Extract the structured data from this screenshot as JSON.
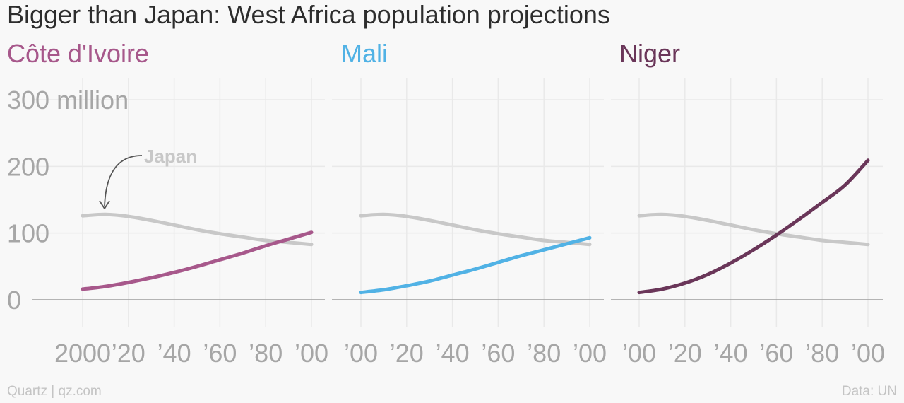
{
  "title": "Bigger than Japan: West Africa population projections",
  "footer": {
    "source_left": "Quartz | qz.com",
    "source_right": "Data: UN"
  },
  "colors": {
    "japan": "#c8c8c8",
    "cote_divoire": "#a7588b",
    "mali": "#51b2e5",
    "niger": "#6a3659",
    "grid": "#e9e9e9",
    "axis": "#9e9e9e",
    "tick_text": "#a6a6a6"
  },
  "chart_data": [
    {
      "type": "line",
      "panel_title": "Côte d'Ivoire",
      "x": [
        2000,
        2010,
        2020,
        2030,
        2040,
        2050,
        2060,
        2070,
        2080,
        2090,
        2100
      ],
      "series": [
        {
          "name": "Japan",
          "values": [
            126,
            128,
            125,
            119,
            112,
            105,
            99,
            94,
            89,
            86,
            83
          ]
        },
        {
          "values": [
            16,
            20,
            26,
            33,
            41,
            50,
            60,
            70,
            81,
            91,
            101
          ]
        }
      ],
      "annotation": "Japan",
      "y_tick_labels": [
        "0",
        "100",
        "200",
        "300 million"
      ],
      "x_tick_labels": [
        "2000",
        "’20",
        "’40",
        "’60",
        "’80",
        "’00"
      ],
      "ylim": [
        0,
        300
      ],
      "xlim": [
        2000,
        2100
      ]
    },
    {
      "type": "line",
      "panel_title": "Mali",
      "x": [
        2000,
        2010,
        2020,
        2030,
        2040,
        2050,
        2060,
        2070,
        2080,
        2090,
        2100
      ],
      "series": [
        {
          "name": "Japan",
          "values": [
            126,
            128,
            125,
            119,
            112,
            105,
            99,
            94,
            89,
            86,
            83
          ]
        },
        {
          "values": [
            11,
            15,
            21,
            28,
            37,
            46,
            56,
            66,
            75,
            84,
            93
          ]
        }
      ],
      "x_tick_labels": [
        "’00",
        "’20",
        "’40",
        "’60",
        "’80",
        "’00"
      ],
      "ylim": [
        0,
        300
      ],
      "xlim": [
        2000,
        2100
      ]
    },
    {
      "type": "line",
      "panel_title": "Niger",
      "x": [
        2000,
        2010,
        2020,
        2030,
        2040,
        2050,
        2060,
        2070,
        2080,
        2090,
        2100
      ],
      "series": [
        {
          "name": "Japan",
          "values": [
            126,
            128,
            125,
            119,
            112,
            105,
            99,
            94,
            89,
            86,
            83
          ]
        },
        {
          "values": [
            11,
            16,
            25,
            38,
            55,
            75,
            97,
            121,
            146,
            172,
            209
          ]
        }
      ],
      "x_tick_labels": [
        "’00",
        "’20",
        "’40",
        "’60",
        "’80",
        "’00"
      ],
      "ylim": [
        0,
        300
      ],
      "xlim": [
        2000,
        2100
      ]
    }
  ]
}
